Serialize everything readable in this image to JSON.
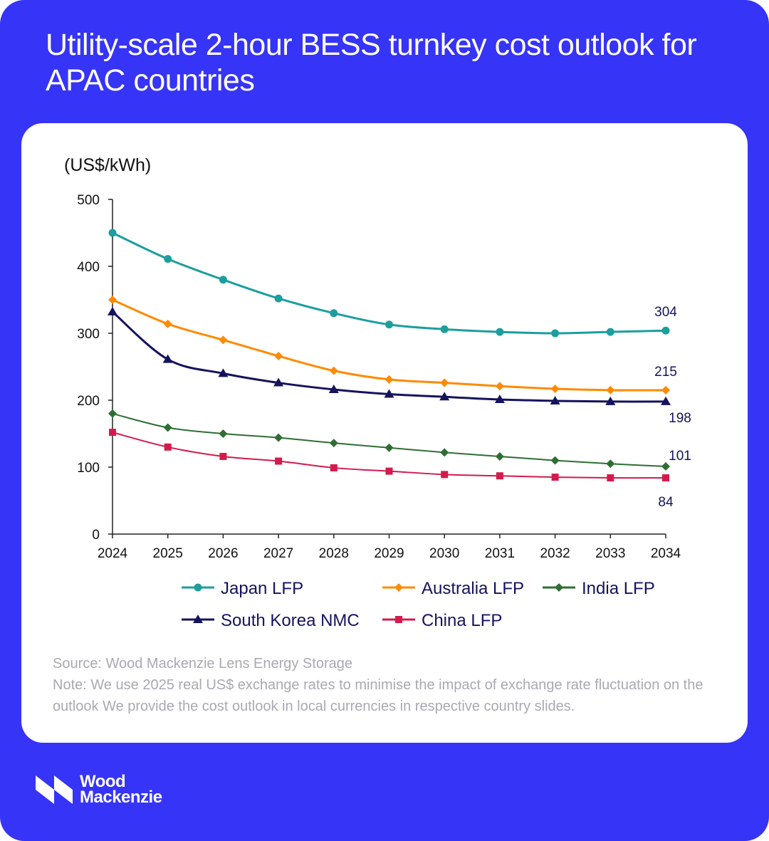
{
  "header": {
    "title": "Utility-scale 2-hour BESS turnkey cost outlook for APAC countries"
  },
  "footer": {
    "source": "Source: Wood Mackenzie Lens Energy Storage",
    "note": "Note: We use 2025 real US$ exchange rates to minimise the impact of exchange rate fluctuation on the outlook We provide the cost outlook in local currencies in respective country slides.",
    "logo_line1": "Wood",
    "logo_line2": "Mackenzie"
  },
  "colors": {
    "background": "#3634f6",
    "card": "#ffffff"
  },
  "chart_data": {
    "type": "line",
    "title": "",
    "ylabel": "(US$/kWh)",
    "xlabel": "",
    "x": [
      "2024",
      "2025",
      "2026",
      "2027",
      "2028",
      "2029",
      "2030",
      "2031",
      "2032",
      "2033",
      "2034"
    ],
    "ylim": [
      0,
      500
    ],
    "yticks": [
      0,
      100,
      200,
      300,
      400,
      500
    ],
    "grid": false,
    "legend_position": "bottom",
    "series": [
      {
        "name": "Japan LFP",
        "color": "#1c9e9e",
        "marker": "circle",
        "values": [
          450,
          411,
          380,
          352,
          330,
          313,
          306,
          302,
          300,
          302,
          304
        ],
        "end_label": "304"
      },
      {
        "name": "Australia LFP",
        "color": "#ff8a00",
        "marker": "diamond",
        "values": [
          350,
          314,
          290,
          266,
          244,
          231,
          226,
          221,
          217,
          215,
          215
        ],
        "end_label": "215"
      },
      {
        "name": "India LFP",
        "color": "#2e6e34",
        "marker": "diamond",
        "values": [
          180,
          159,
          150,
          144,
          136,
          129,
          122,
          116,
          110,
          105,
          101
        ],
        "end_label": "101"
      },
      {
        "name": "South Korea NMC",
        "color": "#15135c",
        "marker": "triangle",
        "values": [
          332,
          261,
          240,
          226,
          216,
          209,
          205,
          201,
          199,
          198,
          198
        ],
        "end_label": "198"
      },
      {
        "name": "China LFP",
        "color": "#d41a4c",
        "marker": "square",
        "values": [
          152,
          130,
          116,
          109,
          99,
          94,
          89,
          87,
          85,
          84,
          84
        ],
        "end_label": "84"
      }
    ]
  }
}
